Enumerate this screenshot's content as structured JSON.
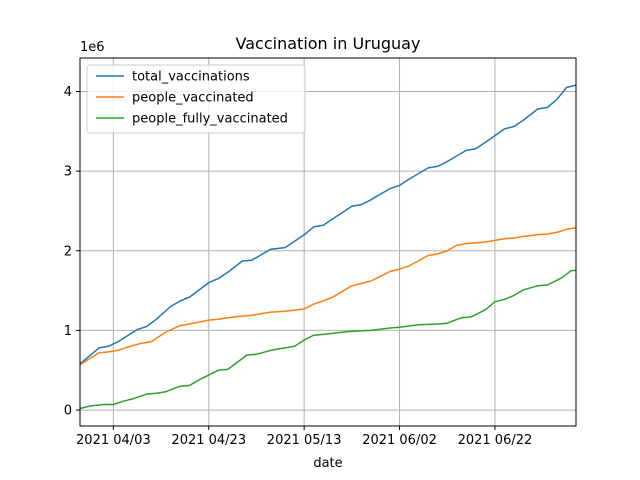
{
  "chart_data": {
    "type": "line",
    "title": "Vaccination in Uruguay",
    "xlabel": "date",
    "ylabel": "",
    "y_offset_label": "1e6",
    "xlim": [
      "2021-03-27",
      "2021-07-09"
    ],
    "ylim": [
      -200000,
      4420000
    ],
    "x_ticks": [
      {
        "date": "2021-04-03",
        "label": "2021 04/03"
      },
      {
        "date": "2021-04-23",
        "label": "2021 04/23"
      },
      {
        "date": "2021-05-13",
        "label": "2021 05/13"
      },
      {
        "date": "2021-06-02",
        "label": "2021 06/02"
      },
      {
        "date": "2021-06-22",
        "label": "2021 06/22"
      }
    ],
    "y_ticks": [
      {
        "value": 0,
        "label": "0"
      },
      {
        "value": 1000000,
        "label": "1"
      },
      {
        "value": 2000000,
        "label": "2"
      },
      {
        "value": 3000000,
        "label": "3"
      },
      {
        "value": 4000000,
        "label": "4"
      }
    ],
    "grid": true,
    "legend_position": "upper-left",
    "series": [
      {
        "name": "total_vaccinations",
        "color": "#1f77b4",
        "points": [
          [
            "2021-03-27",
            580000
          ],
          [
            "2021-03-31",
            780000
          ],
          [
            "2021-04-02",
            800000
          ],
          [
            "2021-04-04",
            860000
          ],
          [
            "2021-04-08",
            1010000
          ],
          [
            "2021-04-10",
            1050000
          ],
          [
            "2021-04-12",
            1140000
          ],
          [
            "2021-04-15",
            1300000
          ],
          [
            "2021-04-17",
            1370000
          ],
          [
            "2021-04-19",
            1420000
          ],
          [
            "2021-04-23",
            1600000
          ],
          [
            "2021-04-25",
            1650000
          ],
          [
            "2021-04-27",
            1730000
          ],
          [
            "2021-04-30",
            1870000
          ],
          [
            "2021-05-02",
            1880000
          ],
          [
            "2021-05-06",
            2020000
          ],
          [
            "2021-05-09",
            2040000
          ],
          [
            "2021-05-13",
            2200000
          ],
          [
            "2021-05-15",
            2300000
          ],
          [
            "2021-05-17",
            2320000
          ],
          [
            "2021-05-19",
            2400000
          ],
          [
            "2021-05-23",
            2560000
          ],
          [
            "2021-05-25",
            2580000
          ],
          [
            "2021-05-27",
            2640000
          ],
          [
            "2021-05-31",
            2780000
          ],
          [
            "2021-06-02",
            2820000
          ],
          [
            "2021-06-04",
            2900000
          ],
          [
            "2021-06-08",
            3040000
          ],
          [
            "2021-06-10",
            3060000
          ],
          [
            "2021-06-12",
            3120000
          ],
          [
            "2021-06-16",
            3260000
          ],
          [
            "2021-06-18",
            3280000
          ],
          [
            "2021-06-20",
            3360000
          ],
          [
            "2021-06-24",
            3530000
          ],
          [
            "2021-06-26",
            3560000
          ],
          [
            "2021-06-28",
            3640000
          ],
          [
            "2021-07-01",
            3780000
          ],
          [
            "2021-07-03",
            3800000
          ],
          [
            "2021-07-05",
            3900000
          ],
          [
            "2021-07-07",
            4050000
          ],
          [
            "2021-07-09",
            4080000
          ],
          [
            "2021-07-11",
            4140000
          ],
          [
            "2021-07-13",
            4210000
          ]
        ]
      },
      {
        "name": "people_vaccinated",
        "color": "#ff7f0e",
        "points": [
          [
            "2021-03-27",
            570000
          ],
          [
            "2021-03-31",
            720000
          ],
          [
            "2021-04-02",
            730000
          ],
          [
            "2021-04-04",
            750000
          ],
          [
            "2021-04-07",
            810000
          ],
          [
            "2021-04-09",
            840000
          ],
          [
            "2021-04-11",
            860000
          ],
          [
            "2021-04-14",
            980000
          ],
          [
            "2021-04-17",
            1060000
          ],
          [
            "2021-04-19",
            1080000
          ],
          [
            "2021-04-23",
            1130000
          ],
          [
            "2021-04-25",
            1140000
          ],
          [
            "2021-04-27",
            1160000
          ],
          [
            "2021-04-30",
            1180000
          ],
          [
            "2021-05-02",
            1190000
          ],
          [
            "2021-05-06",
            1230000
          ],
          [
            "2021-05-09",
            1240000
          ],
          [
            "2021-05-13",
            1270000
          ],
          [
            "2021-05-15",
            1330000
          ],
          [
            "2021-05-17",
            1370000
          ],
          [
            "2021-05-19",
            1420000
          ],
          [
            "2021-05-23",
            1560000
          ],
          [
            "2021-05-25",
            1590000
          ],
          [
            "2021-05-27",
            1620000
          ],
          [
            "2021-05-31",
            1740000
          ],
          [
            "2021-06-02",
            1770000
          ],
          [
            "2021-06-04",
            1810000
          ],
          [
            "2021-06-08",
            1940000
          ],
          [
            "2021-06-10",
            1960000
          ],
          [
            "2021-06-12",
            2000000
          ],
          [
            "2021-06-14",
            2070000
          ],
          [
            "2021-06-16",
            2090000
          ],
          [
            "2021-06-20",
            2110000
          ],
          [
            "2021-06-24",
            2150000
          ],
          [
            "2021-06-26",
            2160000
          ],
          [
            "2021-06-28",
            2180000
          ],
          [
            "2021-07-01",
            2200000
          ],
          [
            "2021-07-03",
            2210000
          ],
          [
            "2021-07-05",
            2230000
          ],
          [
            "2021-07-07",
            2270000
          ],
          [
            "2021-07-09",
            2290000
          ],
          [
            "2021-07-11",
            2300000
          ],
          [
            "2021-07-13",
            2330000
          ]
        ]
      },
      {
        "name": "people_fully_vaccinated",
        "color": "#2ca02c",
        "points": [
          [
            "2021-03-27",
            20000
          ],
          [
            "2021-03-29",
            50000
          ],
          [
            "2021-04-01",
            70000
          ],
          [
            "2021-04-03",
            70000
          ],
          [
            "2021-04-05",
            110000
          ],
          [
            "2021-04-07",
            140000
          ],
          [
            "2021-04-10",
            200000
          ],
          [
            "2021-04-12",
            210000
          ],
          [
            "2021-04-14",
            230000
          ],
          [
            "2021-04-17",
            300000
          ],
          [
            "2021-04-19",
            310000
          ],
          [
            "2021-04-21",
            380000
          ],
          [
            "2021-04-25",
            500000
          ],
          [
            "2021-04-27",
            510000
          ],
          [
            "2021-05-01",
            690000
          ],
          [
            "2021-05-03",
            700000
          ],
          [
            "2021-05-06",
            750000
          ],
          [
            "2021-05-09",
            780000
          ],
          [
            "2021-05-11",
            800000
          ],
          [
            "2021-05-13",
            880000
          ],
          [
            "2021-05-15",
            940000
          ],
          [
            "2021-05-17",
            950000
          ],
          [
            "2021-05-20",
            970000
          ],
          [
            "2021-05-23",
            990000
          ],
          [
            "2021-05-27",
            1000000
          ],
          [
            "2021-05-31",
            1030000
          ],
          [
            "2021-06-02",
            1040000
          ],
          [
            "2021-06-06",
            1070000
          ],
          [
            "2021-06-10",
            1080000
          ],
          [
            "2021-06-12",
            1090000
          ],
          [
            "2021-06-15",
            1160000
          ],
          [
            "2021-06-17",
            1170000
          ],
          [
            "2021-06-20",
            1260000
          ],
          [
            "2021-06-22",
            1360000
          ],
          [
            "2021-06-24",
            1390000
          ],
          [
            "2021-06-26",
            1440000
          ],
          [
            "2021-06-28",
            1510000
          ],
          [
            "2021-07-01",
            1560000
          ],
          [
            "2021-07-03",
            1570000
          ],
          [
            "2021-07-06",
            1660000
          ],
          [
            "2021-07-08",
            1750000
          ],
          [
            "2021-07-10",
            1760000
          ],
          [
            "2021-07-13",
            1880000
          ]
        ]
      }
    ]
  }
}
